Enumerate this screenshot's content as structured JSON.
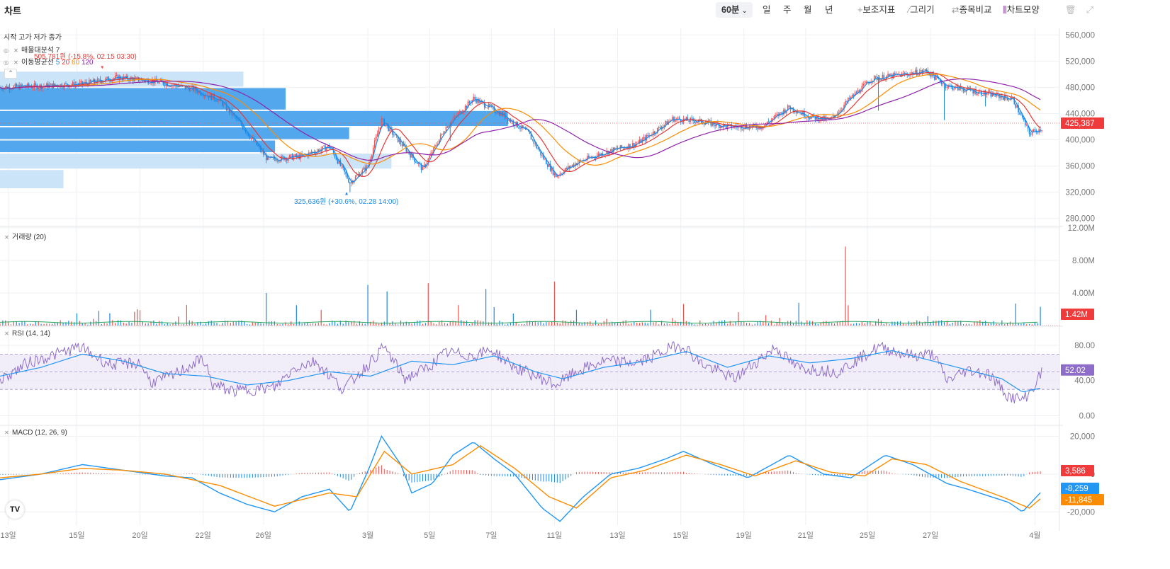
{
  "window": {
    "title": "차트"
  },
  "toolbar": {
    "interval": "60분",
    "periods": [
      "일",
      "주",
      "월",
      "년"
    ],
    "tools": [
      {
        "label": "보조지표",
        "icon": "plus-icon",
        "glyph": "+"
      },
      {
        "label": "그리기",
        "icon": "pencil-icon",
        "glyph": "⁄"
      },
      {
        "label": "종목비교",
        "icon": "compare-icon",
        "glyph": "⇄"
      },
      {
        "label": "차트모양",
        "icon": "candles-icon",
        "glyph": "⫼"
      }
    ]
  },
  "legend": {
    "ohlc": "시작 고가 저가 종가",
    "volume_profile": "매물대분석 7",
    "ma_label": "이동평균선",
    "ma_periods": [
      "5",
      "20",
      "60",
      "120"
    ],
    "ma_colors": [
      "#1e88e5",
      "#e53935",
      "#fb8c00",
      "#8e24aa"
    ],
    "volume": "거래량 (20)",
    "rsi": "RSI (14, 14)",
    "macd": "MACD (12, 26, 9)"
  },
  "annotations": {
    "high": "505,781원 (-15.8%, 02.15 03:30)",
    "low": "325,636원 (+30.6%, 02.28 14:00)"
  },
  "colors": {
    "up": "#ef5350",
    "down": "#1e88e5",
    "ma5": "#1e88e5",
    "ma20": "#e53935",
    "ma60": "#fb8c00",
    "ma120": "#8e24aa",
    "profile": "#4aa3ec",
    "profile_light": "#c9e3f8",
    "rsi": "#8e6cc9",
    "rsi_signal": "#2196f3",
    "volume_ma": "#26a65b",
    "macd": "#2196f3",
    "macd_signal": "#fb8c00",
    "grid": "#eef0f3",
    "axis_text": "#777"
  },
  "chart_data": [
    {
      "type": "candlestick",
      "title": "price",
      "ylim": [
        270000,
        570000
      ],
      "y_ticks": [
        "560,000",
        "520,000",
        "480,000",
        "440,000",
        "400,000",
        "360,000",
        "320,000",
        "280,000"
      ],
      "y_tick_values": [
        560000,
        520000,
        480000,
        440000,
        400000,
        360000,
        320000,
        280000
      ],
      "x_ticks": [
        "13일",
        "15일",
        "20일",
        "22일",
        "26일",
        "3월",
        "5일",
        "7일",
        "11일",
        "13일",
        "15일",
        "19일",
        "21일",
        "25일",
        "27일",
        "4월"
      ],
      "x_tick_bar_index": [
        6,
        56,
        102,
        148,
        192,
        268,
        313,
        358,
        404,
        450,
        496,
        542,
        587,
        632,
        678,
        754
      ],
      "bars": 760,
      "close_path": [
        [
          0,
          480000
        ],
        [
          30,
          482000
        ],
        [
          60,
          485000
        ],
        [
          85,
          495000
        ],
        [
          110,
          490000
        ],
        [
          140,
          478000
        ],
        [
          160,
          460000
        ],
        [
          175,
          425000
        ],
        [
          195,
          370000
        ],
        [
          220,
          375000
        ],
        [
          240,
          390000
        ],
        [
          255,
          335000
        ],
        [
          268,
          360000
        ],
        [
          278,
          430000
        ],
        [
          292,
          395000
        ],
        [
          308,
          355000
        ],
        [
          325,
          420000
        ],
        [
          345,
          463000
        ],
        [
          365,
          440000
        ],
        [
          385,
          410000
        ],
        [
          395,
          375000
        ],
        [
          405,
          345000
        ],
        [
          420,
          365000
        ],
        [
          440,
          380000
        ],
        [
          465,
          395000
        ],
        [
          490,
          432000
        ],
        [
          510,
          428000
        ],
        [
          530,
          420000
        ],
        [
          555,
          420000
        ],
        [
          575,
          450000
        ],
        [
          590,
          435000
        ],
        [
          605,
          430000
        ],
        [
          618,
          460000
        ],
        [
          635,
          493000
        ],
        [
          660,
          500000
        ],
        [
          675,
          505000
        ],
        [
          690,
          482000
        ],
        [
          720,
          470000
        ],
        [
          738,
          462000
        ],
        [
          750,
          410000
        ],
        [
          760,
          418000
        ]
      ],
      "wicks": [
        [
          200,
          0
        ],
        [
          255,
          -15000
        ],
        [
          328,
          -28000
        ],
        [
          330,
          0
        ],
        [
          640,
          -50000
        ],
        [
          688,
          -55000
        ],
        [
          718,
          -20000
        ]
      ],
      "ma_periods": [
        5,
        20,
        60,
        120
      ],
      "current_price": "425,387",
      "volume_profile": [
        {
          "low": 480000,
          "high": 505000,
          "volume": 0.23,
          "shade": "light"
        },
        {
          "low": 445000,
          "high": 480000,
          "volume": 0.27,
          "shade": "dark"
        },
        {
          "low": 420000,
          "high": 445000,
          "volume": 0.48,
          "shade": "dark"
        },
        {
          "low": 400000,
          "high": 420000,
          "volume": 0.33,
          "shade": "dark"
        },
        {
          "low": 380000,
          "high": 400000,
          "volume": 0.26,
          "shade": "dark"
        },
        {
          "low": 355000,
          "high": 380000,
          "volume": 0.37,
          "shade": "light"
        },
        {
          "low": 325000,
          "high": 355000,
          "volume": 0.06,
          "shade": "light"
        }
      ],
      "high": {
        "price": 505781,
        "bar": 75
      },
      "low": {
        "price": 325636,
        "bar": 253
      }
    },
    {
      "type": "bar",
      "title": "volume",
      "ylim": [
        0,
        12000000
      ],
      "y_ticks": [
        "12.00M",
        "8.00M",
        "4.00M"
      ],
      "y_tick_values": [
        12000000,
        8000000,
        4000000
      ],
      "baseline": 400000,
      "spikes": [
        [
          56,
          1500000
        ],
        [
          101,
          2000000
        ],
        [
          195,
          4000000
        ],
        [
          216,
          2500000
        ],
        [
          268,
          5000000
        ],
        [
          283,
          4200000
        ],
        [
          313,
          5200000
        ],
        [
          354,
          4500000
        ],
        [
          404,
          5400000
        ],
        [
          582,
          2800000
        ],
        [
          617,
          9700000
        ],
        [
          740,
          2700000
        ],
        [
          758,
          2300000
        ]
      ],
      "current": "1.42M"
    },
    {
      "type": "line",
      "title": "RSI",
      "ylim": [
        -10,
        100
      ],
      "y_ticks": [
        "80.00",
        "40.00",
        "0.00"
      ],
      "y_tick_values": [
        80,
        40,
        0
      ],
      "band": [
        30,
        70
      ],
      "mid": 50,
      "rsi_path": [
        [
          0,
          40
        ],
        [
          20,
          60
        ],
        [
          58,
          78
        ],
        [
          80,
          58
        ],
        [
          102,
          60
        ],
        [
          110,
          38
        ],
        [
          125,
          45
        ],
        [
          148,
          65
        ],
        [
          155,
          35
        ],
        [
          170,
          28
        ],
        [
          200,
          32
        ],
        [
          215,
          55
        ],
        [
          230,
          62
        ],
        [
          250,
          30
        ],
        [
          268,
          58
        ],
        [
          280,
          78
        ],
        [
          295,
          42
        ],
        [
          312,
          55
        ],
        [
          325,
          72
        ],
        [
          345,
          68
        ],
        [
          358,
          75
        ],
        [
          375,
          55
        ],
        [
          395,
          42
        ],
        [
          405,
          35
        ],
        [
          420,
          50
        ],
        [
          440,
          62
        ],
        [
          465,
          60
        ],
        [
          490,
          78
        ],
        [
          498,
          80
        ],
        [
          510,
          60
        ],
        [
          535,
          42
        ],
        [
          565,
          78
        ],
        [
          580,
          55
        ],
        [
          610,
          50
        ],
        [
          640,
          78
        ],
        [
          665,
          68
        ],
        [
          680,
          70
        ],
        [
          690,
          40
        ],
        [
          705,
          52
        ],
        [
          720,
          48
        ],
        [
          735,
          22
        ],
        [
          745,
          18
        ],
        [
          752,
          30
        ],
        [
          760,
          52
        ]
      ],
      "signal_path": [
        [
          0,
          45
        ],
        [
          30,
          55
        ],
        [
          60,
          70
        ],
        [
          90,
          62
        ],
        [
          120,
          48
        ],
        [
          150,
          45
        ],
        [
          180,
          35
        ],
        [
          210,
          40
        ],
        [
          240,
          50
        ],
        [
          270,
          45
        ],
        [
          300,
          62
        ],
        [
          330,
          58
        ],
        [
          360,
          68
        ],
        [
          390,
          50
        ],
        [
          410,
          42
        ],
        [
          440,
          55
        ],
        [
          470,
          62
        ],
        [
          500,
          73
        ],
        [
          530,
          55
        ],
        [
          560,
          68
        ],
        [
          590,
          60
        ],
        [
          620,
          65
        ],
        [
          650,
          74
        ],
        [
          680,
          62
        ],
        [
          705,
          52
        ],
        [
          730,
          42
        ],
        [
          745,
          27
        ],
        [
          760,
          32
        ]
      ],
      "current": "52.02"
    },
    {
      "type": "line",
      "title": "MACD",
      "ylim": [
        -27000,
        25000
      ],
      "y_ticks": [
        "20,000",
        "0",
        "-20,000"
      ],
      "y_tick_values": [
        20000,
        0,
        -20000
      ],
      "macd_path": [
        [
          0,
          -3000
        ],
        [
          30,
          0
        ],
        [
          60,
          5000
        ],
        [
          90,
          2000
        ],
        [
          120,
          -1000
        ],
        [
          140,
          -2000
        ],
        [
          160,
          -10000
        ],
        [
          180,
          -16000
        ],
        [
          200,
          -20000
        ],
        [
          220,
          -12000
        ],
        [
          240,
          -8000
        ],
        [
          255,
          -20000
        ],
        [
          270,
          5000
        ],
        [
          278,
          20000
        ],
        [
          292,
          5000
        ],
        [
          300,
          -10000
        ],
        [
          315,
          -5000
        ],
        [
          330,
          10000
        ],
        [
          345,
          17000
        ],
        [
          360,
          8000
        ],
        [
          375,
          0
        ],
        [
          395,
          -18000
        ],
        [
          408,
          -25000
        ],
        [
          425,
          -12000
        ],
        [
          445,
          0
        ],
        [
          465,
          3000
        ],
        [
          485,
          8000
        ],
        [
          498,
          12000
        ],
        [
          520,
          5000
        ],
        [
          545,
          -2000
        ],
        [
          575,
          10000
        ],
        [
          600,
          0
        ],
        [
          620,
          -2000
        ],
        [
          645,
          10000
        ],
        [
          665,
          5000
        ],
        [
          690,
          -5000
        ],
        [
          705,
          -8000
        ],
        [
          735,
          -15000
        ],
        [
          745,
          -20000
        ],
        [
          760,
          -8259
        ]
      ],
      "signal_path": [
        [
          0,
          -2000
        ],
        [
          30,
          0
        ],
        [
          60,
          3000
        ],
        [
          90,
          2000
        ],
        [
          120,
          0
        ],
        [
          160,
          -6000
        ],
        [
          200,
          -17000
        ],
        [
          240,
          -10000
        ],
        [
          260,
          -12000
        ],
        [
          280,
          12000
        ],
        [
          300,
          0
        ],
        [
          330,
          5000
        ],
        [
          350,
          15000
        ],
        [
          375,
          3000
        ],
        [
          400,
          -12000
        ],
        [
          420,
          -18000
        ],
        [
          445,
          -2000
        ],
        [
          470,
          2000
        ],
        [
          500,
          10000
        ],
        [
          525,
          5000
        ],
        [
          550,
          -1000
        ],
        [
          580,
          7000
        ],
        [
          605,
          1000
        ],
        [
          630,
          -1000
        ],
        [
          650,
          8000
        ],
        [
          675,
          5000
        ],
        [
          700,
          -4000
        ],
        [
          730,
          -12000
        ],
        [
          750,
          -18000
        ],
        [
          760,
          -11845
        ]
      ],
      "current_hist": "3,586",
      "current_macd": "-8,259",
      "current_signal": "-11,845"
    }
  ]
}
